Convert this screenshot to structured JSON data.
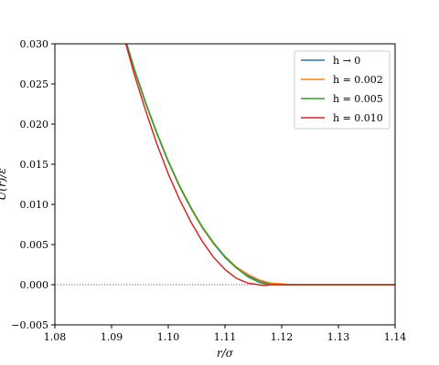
{
  "chart_data": {
    "type": "line",
    "xlabel": "r/σ",
    "ylabel": "U(r)/ε",
    "xlim": [
      1.08,
      1.14
    ],
    "ylim": [
      -0.005,
      0.03
    ],
    "x_ticks": [
      "1.08",
      "1.09",
      "1.10",
      "1.11",
      "1.12",
      "1.13",
      "1.14"
    ],
    "y_ticks": [
      "−0.005",
      "0.000",
      "0.005",
      "0.010",
      "0.015",
      "0.020",
      "0.025",
      "0.030"
    ],
    "grid": false,
    "legend_position": "top-right",
    "reference_line": {
      "y": 0,
      "style": "dotted",
      "color": "#000000"
    },
    "series": [
      {
        "name": "h → 0",
        "color": "#1f77b4",
        "x": [
          1.092,
          1.094,
          1.096,
          1.098,
          1.1,
          1.102,
          1.104,
          1.106,
          1.108,
          1.11,
          1.112,
          1.114,
          1.116,
          1.118,
          1.12,
          1.121,
          1.1225,
          1.13,
          1.14
        ],
        "y": [
          0.0315,
          0.0268,
          0.0226,
          0.0188,
          0.0153,
          0.0122,
          0.0095,
          0.0071,
          0.0051,
          0.0034,
          0.0021,
          0.0011,
          0.0005,
          0.0001,
          0.0,
          0.0,
          0.0,
          0.0,
          0.0
        ]
      },
      {
        "name": "h = 0.002",
        "color": "#ff7f0e",
        "x": [
          1.092,
          1.094,
          1.096,
          1.098,
          1.1,
          1.102,
          1.104,
          1.106,
          1.108,
          1.11,
          1.112,
          1.114,
          1.116,
          1.118,
          1.12,
          1.122,
          1.124,
          1.13,
          1.14
        ],
        "y": [
          0.0315,
          0.0268,
          0.0226,
          0.0188,
          0.0153,
          0.0122,
          0.0095,
          0.0071,
          0.0051,
          0.0035,
          0.0022,
          0.0013,
          0.0006,
          0.0002,
          0.0001,
          0.0,
          0.0,
          0.0,
          0.0
        ]
      },
      {
        "name": "h = 0.005",
        "color": "#2ca02c",
        "x": [
          1.092,
          1.094,
          1.096,
          1.098,
          1.1,
          1.102,
          1.104,
          1.106,
          1.108,
          1.11,
          1.112,
          1.114,
          1.116,
          1.118,
          1.12,
          1.122,
          1.13,
          1.14
        ],
        "y": [
          0.0316,
          0.0269,
          0.0227,
          0.0189,
          0.0154,
          0.0123,
          0.0096,
          0.0072,
          0.0052,
          0.0035,
          0.0021,
          0.001,
          0.0003,
          0.0,
          0.0,
          0.0,
          0.0,
          0.0
        ]
      },
      {
        "name": "h = 0.010",
        "color": "#d62728",
        "x": [
          1.092,
          1.094,
          1.096,
          1.098,
          1.1,
          1.102,
          1.104,
          1.106,
          1.108,
          1.11,
          1.112,
          1.114,
          1.116,
          1.117,
          1.118,
          1.12,
          1.13,
          1.14
        ],
        "y": [
          0.0313,
          0.0262,
          0.0217,
          0.0175,
          0.0138,
          0.0106,
          0.0078,
          0.0054,
          0.0034,
          0.0019,
          0.0008,
          0.0002,
          0.0,
          -0.0001,
          0.0,
          0.0,
          0.0,
          0.0
        ]
      }
    ]
  }
}
